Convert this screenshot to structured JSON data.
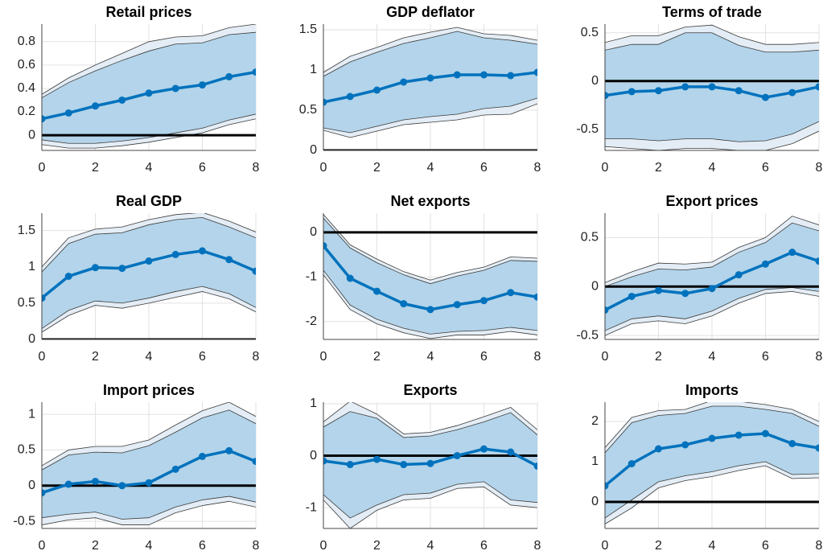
{
  "chart_data": [
    {
      "type": "band-line",
      "title": "Retail prices",
      "x": [
        0,
        1,
        2,
        3,
        4,
        5,
        6,
        7,
        8
      ],
      "xlim": [
        0,
        8
      ],
      "xticks": [
        0,
        2,
        4,
        6,
        8
      ],
      "ylim": [
        -0.13,
        0.95
      ],
      "yticks": [
        0,
        0.2,
        0.4,
        0.6,
        0.8
      ],
      "grid": true,
      "hline": 0,
      "color": "#0072bd",
      "inner_color": "#b3d4ea",
      "outer_color": "#e4edf5",
      "values": [
        0.14,
        0.19,
        0.25,
        0.3,
        0.36,
        0.4,
        0.43,
        0.5,
        0.54
      ],
      "inner_band": {
        "lower": [
          -0.04,
          -0.07,
          -0.07,
          -0.05,
          -0.02,
          0.02,
          0.06,
          0.13,
          0.18
        ],
        "upper": [
          0.32,
          0.45,
          0.55,
          0.64,
          0.72,
          0.78,
          0.79,
          0.86,
          0.88
        ]
      },
      "outer_band": {
        "lower": [
          -0.08,
          -0.11,
          -0.11,
          -0.09,
          -0.06,
          -0.02,
          0.02,
          0.09,
          0.14
        ],
        "upper": [
          0.35,
          0.49,
          0.6,
          0.7,
          0.8,
          0.84,
          0.85,
          0.92,
          0.95
        ]
      }
    },
    {
      "type": "band-line",
      "title": "GDP deflator",
      "x": [
        0,
        1,
        2,
        3,
        4,
        5,
        6,
        7,
        8
      ],
      "xlim": [
        0,
        8
      ],
      "xticks": [
        0,
        2,
        4,
        6,
        8
      ],
      "ylim": [
        0,
        1.57
      ],
      "yticks": [
        0,
        0.5,
        1,
        1.5
      ],
      "grid": true,
      "hline": 0,
      "color": "#0072bd",
      "inner_color": "#b3d4ea",
      "outer_color": "#e4edf5",
      "values": [
        0.6,
        0.67,
        0.75,
        0.85,
        0.9,
        0.94,
        0.94,
        0.93,
        0.97
      ],
      "inner_band": {
        "lower": [
          0.28,
          0.22,
          0.3,
          0.38,
          0.42,
          0.45,
          0.52,
          0.55,
          0.65
        ],
        "upper": [
          0.92,
          1.1,
          1.22,
          1.33,
          1.4,
          1.48,
          1.4,
          1.37,
          1.32
        ]
      },
      "outer_band": {
        "lower": [
          0.25,
          0.16,
          0.24,
          0.32,
          0.35,
          0.38,
          0.44,
          0.45,
          0.58
        ],
        "upper": [
          0.97,
          1.17,
          1.28,
          1.4,
          1.47,
          1.53,
          1.45,
          1.43,
          1.37
        ]
      }
    },
    {
      "type": "band-line",
      "title": "Terms of trade",
      "x": [
        0,
        1,
        2,
        3,
        4,
        5,
        6,
        7,
        8
      ],
      "xlim": [
        0,
        8
      ],
      "xticks": [
        0,
        2,
        4,
        6,
        8
      ],
      "ylim": [
        -0.72,
        0.59
      ],
      "yticks": [
        -0.5,
        0,
        0.5
      ],
      "grid": true,
      "hline": 0,
      "color": "#0072bd",
      "inner_color": "#b3d4ea",
      "outer_color": "#e4edf5",
      "values": [
        -0.15,
        -0.11,
        -0.1,
        -0.06,
        -0.06,
        -0.1,
        -0.17,
        -0.12,
        -0.06
      ],
      "inner_band": {
        "lower": [
          -0.6,
          -0.6,
          -0.62,
          -0.6,
          -0.6,
          -0.63,
          -0.62,
          -0.55,
          -0.42
        ],
        "upper": [
          0.32,
          0.38,
          0.38,
          0.5,
          0.5,
          0.37,
          0.3,
          0.3,
          0.32
        ]
      },
      "outer_band": {
        "lower": [
          -0.68,
          -0.7,
          -0.72,
          -0.7,
          -0.7,
          -0.72,
          -0.72,
          -0.65,
          -0.52
        ],
        "upper": [
          0.4,
          0.47,
          0.47,
          0.56,
          0.58,
          0.46,
          0.38,
          0.38,
          0.4
        ]
      }
    },
    {
      "type": "band-line",
      "title": "Real GDP",
      "x": [
        0,
        1,
        2,
        3,
        4,
        5,
        6,
        7,
        8
      ],
      "xlim": [
        0,
        8
      ],
      "xticks": [
        0,
        2,
        4,
        6,
        8
      ],
      "ylim": [
        0,
        1.74
      ],
      "yticks": [
        0,
        0.5,
        1,
        1.5
      ],
      "grid": true,
      "hline": 0,
      "color": "#0072bd",
      "inner_color": "#b3d4ea",
      "outer_color": "#e4edf5",
      "values": [
        0.57,
        0.87,
        0.99,
        0.98,
        1.08,
        1.17,
        1.22,
        1.1,
        0.94
      ],
      "inner_band": {
        "lower": [
          0.15,
          0.4,
          0.53,
          0.5,
          0.57,
          0.66,
          0.73,
          0.63,
          0.44
        ],
        "upper": [
          0.93,
          1.32,
          1.45,
          1.47,
          1.58,
          1.65,
          1.68,
          1.55,
          1.4
        ]
      },
      "outer_band": {
        "lower": [
          0.1,
          0.33,
          0.47,
          0.43,
          0.5,
          0.58,
          0.66,
          0.56,
          0.38
        ],
        "upper": [
          1.0,
          1.4,
          1.52,
          1.55,
          1.65,
          1.72,
          1.75,
          1.63,
          1.48
        ]
      }
    },
    {
      "type": "band-line",
      "title": "Net exports",
      "x": [
        0,
        1,
        2,
        3,
        4,
        5,
        6,
        7,
        8
      ],
      "xlim": [
        0,
        8
      ],
      "xticks": [
        0,
        2,
        4,
        6,
        8
      ],
      "ylim": [
        -2.4,
        0.43
      ],
      "yticks": [
        -2,
        -1,
        0
      ],
      "grid": true,
      "hline": 0,
      "color": "#0072bd",
      "inner_color": "#b3d4ea",
      "outer_color": "#e4edf5",
      "values": [
        -0.3,
        -1.03,
        -1.32,
        -1.6,
        -1.73,
        -1.62,
        -1.53,
        -1.35,
        -1.45
      ],
      "inner_band": {
        "lower": [
          -0.85,
          -1.63,
          -1.95,
          -2.15,
          -2.28,
          -2.22,
          -2.2,
          -2.13,
          -2.2
        ],
        "upper": [
          0.32,
          -0.35,
          -0.68,
          -0.95,
          -1.15,
          -0.98,
          -0.85,
          -0.63,
          -0.65
        ]
      },
      "outer_band": {
        "lower": [
          -0.95,
          -1.73,
          -2.05,
          -2.25,
          -2.38,
          -2.3,
          -2.3,
          -2.22,
          -2.3
        ],
        "upper": [
          0.4,
          -0.28,
          -0.6,
          -0.88,
          -1.07,
          -0.9,
          -0.78,
          -0.55,
          -0.58
        ]
      }
    },
    {
      "type": "band-line",
      "title": "Export prices",
      "x": [
        0,
        1,
        2,
        3,
        4,
        5,
        6,
        7,
        8
      ],
      "xlim": [
        0,
        8
      ],
      "xticks": [
        0,
        2,
        4,
        6,
        8
      ],
      "ylim": [
        -0.54,
        0.75
      ],
      "yticks": [
        -0.5,
        0,
        0.5
      ],
      "grid": true,
      "hline": 0,
      "color": "#0072bd",
      "inner_color": "#b3d4ea",
      "outer_color": "#e4edf5",
      "values": [
        -0.24,
        -0.1,
        -0.04,
        -0.07,
        -0.02,
        0.12,
        0.23,
        0.35,
        0.26
      ],
      "inner_band": {
        "lower": [
          -0.45,
          -0.33,
          -0.3,
          -0.33,
          -0.25,
          -0.12,
          -0.03,
          -0.01,
          -0.05
        ],
        "upper": [
          0.0,
          0.1,
          0.18,
          0.17,
          0.2,
          0.35,
          0.45,
          0.65,
          0.57
        ]
      },
      "outer_band": {
        "lower": [
          -0.5,
          -0.38,
          -0.35,
          -0.38,
          -0.3,
          -0.17,
          -0.07,
          -0.05,
          -0.1
        ],
        "upper": [
          0.04,
          0.15,
          0.24,
          0.23,
          0.25,
          0.4,
          0.5,
          0.72,
          0.63
        ]
      }
    },
    {
      "type": "band-line",
      "title": "Import prices",
      "x": [
        0,
        1,
        2,
        3,
        4,
        5,
        6,
        7,
        8
      ],
      "xlim": [
        0,
        8
      ],
      "xticks": [
        0,
        2,
        4,
        6,
        8
      ],
      "ylim": [
        -0.6,
        1.17
      ],
      "yticks": [
        -0.5,
        0,
        0.5,
        1
      ],
      "grid": true,
      "hline": 0,
      "color": "#0072bd",
      "inner_color": "#b3d4ea",
      "outer_color": "#e4edf5",
      "values": [
        -0.1,
        0.02,
        0.06,
        0.0,
        0.04,
        0.23,
        0.41,
        0.49,
        0.34
      ],
      "inner_band": {
        "lower": [
          -0.45,
          -0.4,
          -0.37,
          -0.47,
          -0.45,
          -0.3,
          -0.2,
          -0.15,
          -0.23
        ],
        "upper": [
          0.22,
          0.43,
          0.47,
          0.46,
          0.56,
          0.75,
          0.95,
          1.06,
          0.87
        ]
      },
      "outer_band": {
        "lower": [
          -0.55,
          -0.48,
          -0.45,
          -0.55,
          -0.55,
          -0.38,
          -0.28,
          -0.22,
          -0.3
        ],
        "upper": [
          0.28,
          0.5,
          0.55,
          0.55,
          0.64,
          0.85,
          1.05,
          1.17,
          0.97
        ]
      }
    },
    {
      "type": "band-line",
      "title": "Exports",
      "x": [
        0,
        1,
        2,
        3,
        4,
        5,
        6,
        7,
        8
      ],
      "xlim": [
        0,
        8
      ],
      "xticks": [
        0,
        2,
        4,
        6,
        8
      ],
      "ylim": [
        -1.4,
        1.03
      ],
      "yticks": [
        -1,
        0,
        1
      ],
      "grid": true,
      "hline": 0,
      "color": "#0072bd",
      "inner_color": "#b3d4ea",
      "outer_color": "#e4edf5",
      "values": [
        -0.1,
        -0.17,
        -0.07,
        -0.17,
        -0.15,
        0.0,
        0.13,
        0.07,
        -0.2
      ],
      "inner_band": {
        "lower": [
          -0.75,
          -1.2,
          -0.95,
          -0.75,
          -0.72,
          -0.55,
          -0.5,
          -0.85,
          -0.9
        ],
        "upper": [
          0.55,
          0.85,
          0.72,
          0.35,
          0.38,
          0.5,
          0.65,
          0.83,
          0.4
        ]
      },
      "outer_band": {
        "lower": [
          -0.85,
          -1.4,
          -1.05,
          -0.85,
          -0.82,
          -0.63,
          -0.6,
          -0.95,
          -1.0
        ],
        "upper": [
          0.65,
          1.05,
          0.8,
          0.42,
          0.45,
          0.58,
          0.75,
          0.93,
          0.5
        ]
      }
    },
    {
      "type": "band-line",
      "title": "Imports",
      "x": [
        0,
        1,
        2,
        3,
        4,
        5,
        6,
        7,
        8
      ],
      "xlim": [
        0,
        8
      ],
      "xticks": [
        0,
        2,
        4,
        6,
        8
      ],
      "ylim": [
        -0.66,
        2.48
      ],
      "yticks": [
        0,
        1,
        2
      ],
      "grid": true,
      "hline": 0,
      "color": "#0072bd",
      "inner_color": "#b3d4ea",
      "outer_color": "#e4edf5",
      "values": [
        0.4,
        0.95,
        1.32,
        1.42,
        1.58,
        1.66,
        1.7,
        1.45,
        1.34
      ],
      "inner_band": {
        "lower": [
          -0.4,
          0.05,
          0.5,
          0.65,
          0.75,
          0.9,
          1.0,
          0.68,
          0.7
        ],
        "upper": [
          1.22,
          1.97,
          2.15,
          2.2,
          2.38,
          2.38,
          2.3,
          2.2,
          1.88
        ]
      },
      "outer_band": {
        "lower": [
          -0.55,
          -0.15,
          0.35,
          0.53,
          0.63,
          0.78,
          0.9,
          0.58,
          0.6
        ],
        "upper": [
          1.35,
          2.1,
          2.27,
          2.3,
          2.52,
          2.5,
          2.42,
          2.3,
          2.0
        ]
      }
    }
  ]
}
